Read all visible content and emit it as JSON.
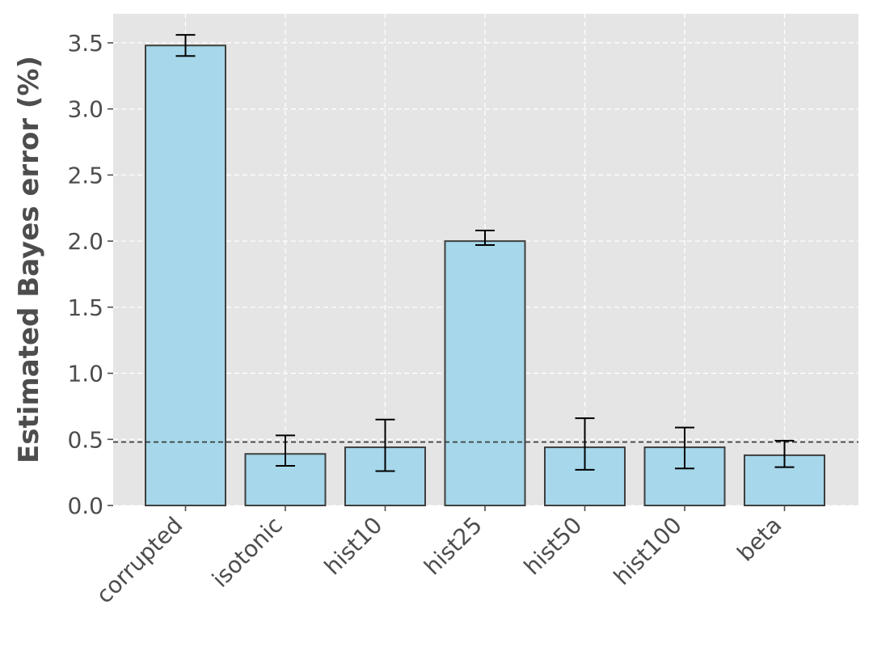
{
  "chart_data": {
    "type": "bar",
    "title": "",
    "xlabel": "",
    "ylabel": "Estimated Bayes error (%)",
    "categories": [
      "corrupted",
      "isotonic",
      "hist10",
      "hist25",
      "hist50",
      "hist100",
      "beta"
    ],
    "values": [
      3.48,
      0.39,
      0.44,
      2.0,
      0.44,
      0.44,
      0.38
    ],
    "error_low": [
      3.4,
      0.3,
      0.26,
      1.97,
      0.27,
      0.28,
      0.29
    ],
    "error_high": [
      3.56,
      0.53,
      0.65,
      2.08,
      0.66,
      0.59,
      0.49
    ],
    "reference_line": 0.48,
    "ylim": [
      0,
      3.72
    ],
    "yticks": [
      "0.0",
      "0.5",
      "1.0",
      "1.5",
      "2.0",
      "2.5",
      "3.0",
      "3.5"
    ],
    "ytick_values": [
      0,
      0.5,
      1.0,
      1.5,
      2.0,
      2.5,
      3.0,
      3.5
    ],
    "grid": true,
    "colors": {
      "bar_fill": "#a6d7ea",
      "bar_edge": "#3f3f3f",
      "plot_background": "#e5e5e5",
      "grid": "#ffffff",
      "reference_line": "#333333",
      "error_bar": "#000000"
    }
  }
}
